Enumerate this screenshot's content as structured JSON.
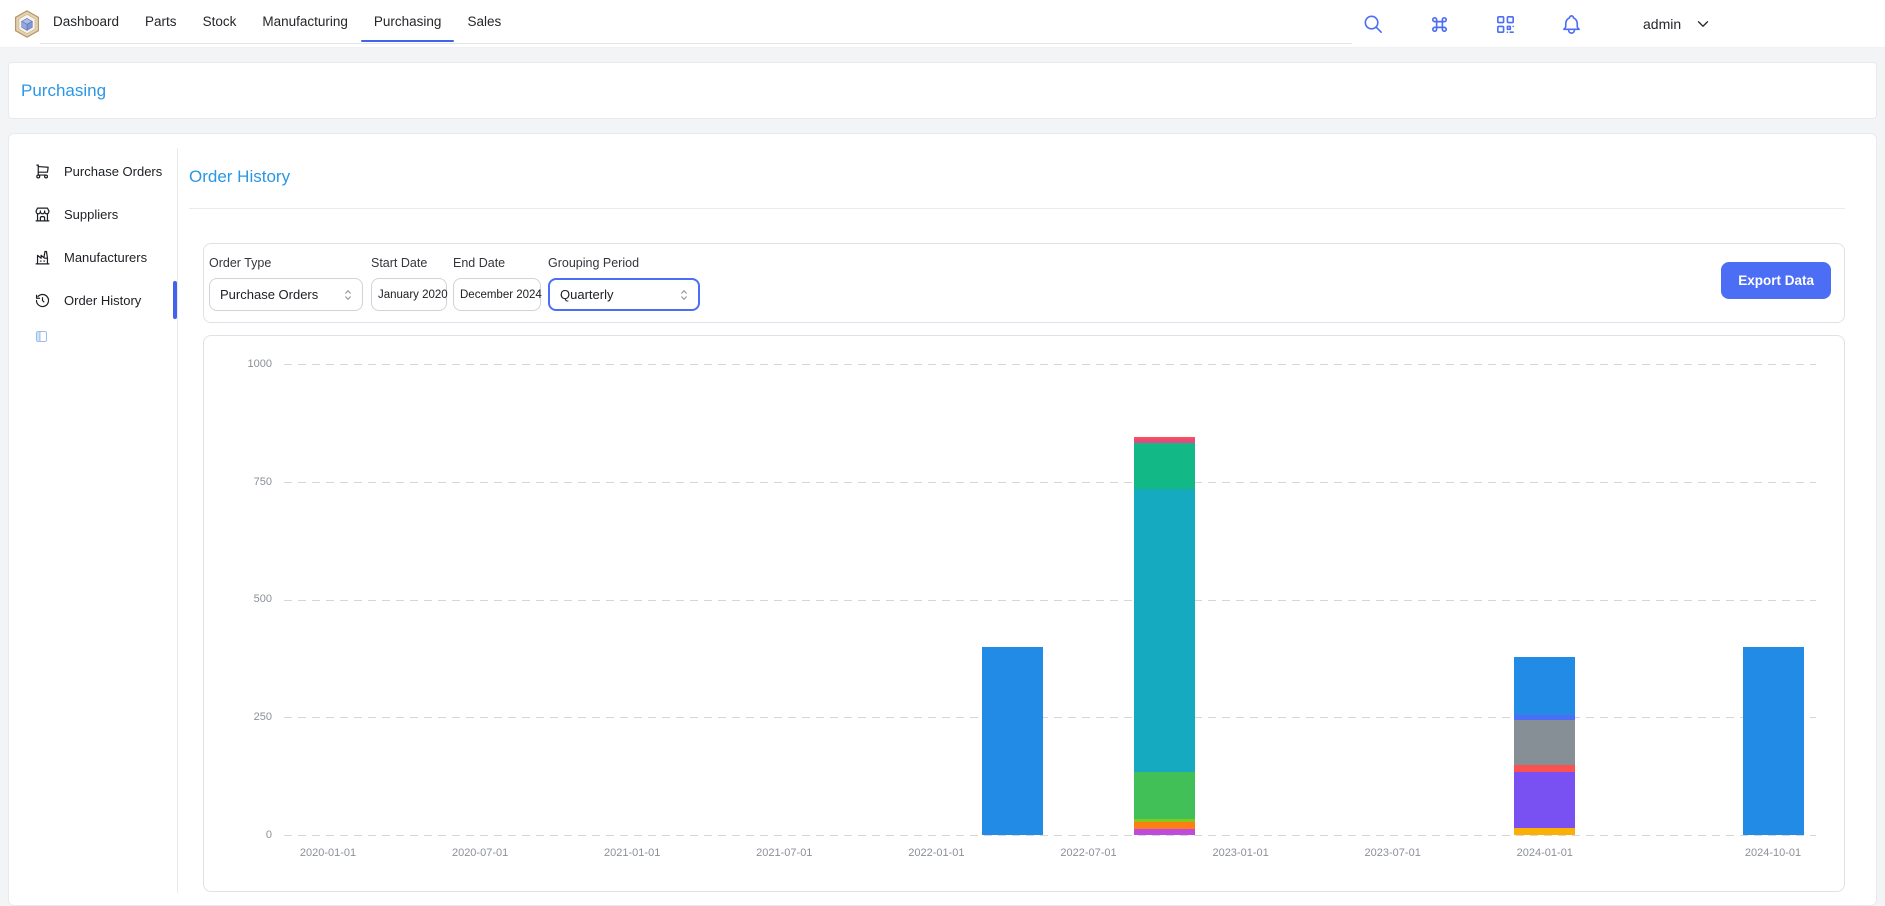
{
  "navbar": {
    "tabs": [
      {
        "label": "Dashboard",
        "active": false
      },
      {
        "label": "Parts",
        "active": false
      },
      {
        "label": "Stock",
        "active": false
      },
      {
        "label": "Manufacturing",
        "active": false
      },
      {
        "label": "Purchasing",
        "active": true
      },
      {
        "label": "Sales",
        "active": false
      }
    ],
    "icons": [
      "search",
      "command",
      "qrcode",
      "bell"
    ],
    "username": "admin",
    "user_menu_icon": "chevron-down"
  },
  "breadcrumb": {
    "title": "Purchasing"
  },
  "sidebar": {
    "items": [
      {
        "label": "Purchase Orders",
        "icon": "shopping-cart",
        "active": false
      },
      {
        "label": "Suppliers",
        "icon": "building-store",
        "active": false
      },
      {
        "label": "Manufacturers",
        "icon": "factory",
        "active": false
      },
      {
        "label": "Order History",
        "icon": "history",
        "active": true
      }
    ],
    "collapse_icon": "sidebar-collapse"
  },
  "main": {
    "title": "Order History",
    "filters": {
      "order_type": {
        "label": "Order Type",
        "value": "Purchase Orders",
        "icon": "selector"
      },
      "start_date": {
        "label": "Start Date",
        "value": "January 2020"
      },
      "end_date": {
        "label": "End Date",
        "value": "December 2024"
      },
      "grouping_period": {
        "label": "Grouping Period",
        "value": "Quarterly",
        "icon": "selector",
        "focused": true
      },
      "export_button": "Export Data"
    }
  },
  "colors": {
    "accent_indigo": "#4c6ef5",
    "tab_underline": "#4263eb",
    "heading_blue": "#2b97e4",
    "export_button_bg": "#4c6ef5",
    "grid_dash": "#d3d6da"
  },
  "chart_data": {
    "type": "bar",
    "stacked": true,
    "title": "",
    "xlabel": "",
    "ylabel": "",
    "x_axis_type": "time",
    "legend": "none",
    "grid": "horizontal-dashed",
    "x_tick_labels": [
      "2020-01-01",
      "2020-07-01",
      "2021-01-01",
      "2021-07-01",
      "2022-01-01",
      "2022-07-01",
      "2023-01-01",
      "2023-07-01",
      "2024-01-01",
      "2024-10-01"
    ],
    "y_ticks": [
      0,
      250,
      500,
      750,
      1000
    ],
    "ylim": [
      0,
      1065
    ],
    "bars": [
      {
        "date": "2022-04-01",
        "total": 400,
        "segments": [
          {
            "color": "#228be6",
            "value": 400
          }
        ]
      },
      {
        "date": "2022-10-01",
        "total": 845,
        "segments": [
          {
            "color": "#be4bdb",
            "value": 13
          },
          {
            "color": "#fd7e14",
            "value": 15
          },
          {
            "color": "#82c91e",
            "value": 6
          },
          {
            "color": "#40c057",
            "value": 100
          },
          {
            "color": "#15aabf",
            "value": 602
          },
          {
            "color": "#12b886",
            "value": 98
          },
          {
            "color": "#e64980",
            "value": 7
          },
          {
            "color": "#fa5252",
            "value": 4
          }
        ]
      },
      {
        "date": "2024-01-01",
        "total": 379,
        "segments": [
          {
            "color": "#fab005",
            "value": 16
          },
          {
            "color": "#7950f2",
            "value": 118
          },
          {
            "color": "#fa5252",
            "value": 14
          },
          {
            "color": "#868e96",
            "value": 97
          },
          {
            "color": "#4c6ef5",
            "value": 11
          },
          {
            "color": "#228be6",
            "value": 123
          }
        ]
      },
      {
        "date": "2024-10-01",
        "total": 400,
        "segments": [
          {
            "color": "#228be6",
            "value": 400
          }
        ]
      }
    ]
  }
}
